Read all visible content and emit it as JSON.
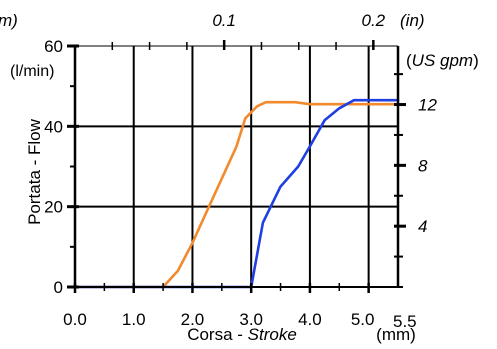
{
  "chart_data": {
    "type": "line",
    "title": "",
    "xlabel": {
      "prefix": "Corsa - ",
      "italic": "Stroke"
    },
    "xunit": "(mm)",
    "ylabel": "Portata - Flow",
    "yunit": "(l/min)",
    "y2unit_prefix": "(",
    "y2unit_italic": "US gpm",
    "y2unit_suffix": ")",
    "top_axis_edge_label": "m)",
    "top_axis_unit": "(in)",
    "xlim": [
      0,
      5.5
    ],
    "ylim": [
      0,
      60
    ],
    "y2lim": [
      0,
      15.85
    ],
    "x_ticks": [
      "0.0",
      "1.0",
      "2.0",
      "3.0",
      "4.0",
      "5.0",
      "5.5"
    ],
    "y_ticks": [
      "0",
      "20",
      "40",
      "60"
    ],
    "y2_ticks": [
      "4",
      "8",
      "12"
    ],
    "top_ticks": [
      "0.1",
      "0.2"
    ],
    "grid": true,
    "series": [
      {
        "color": "#f28a2e",
        "x": [
          0,
          1.5,
          1.75,
          2.0,
          2.25,
          2.5,
          2.75,
          2.9,
          3.1,
          3.25,
          3.5,
          3.75,
          4.0,
          4.5,
          5.0,
          5.5
        ],
        "y": [
          0,
          0,
          4,
          11,
          19,
          27,
          35,
          42,
          45,
          46,
          46,
          46,
          45.5,
          45.5,
          45.5,
          45.5
        ]
      },
      {
        "color": "#1f3fe0",
        "x": [
          0,
          3.0,
          3.2,
          3.5,
          3.8,
          4.0,
          4.25,
          4.5,
          4.75,
          5.0,
          5.5
        ],
        "y": [
          0,
          0,
          16,
          25,
          30,
          35,
          41.5,
          44.5,
          46.5,
          46.5,
          46.5
        ]
      }
    ]
  }
}
